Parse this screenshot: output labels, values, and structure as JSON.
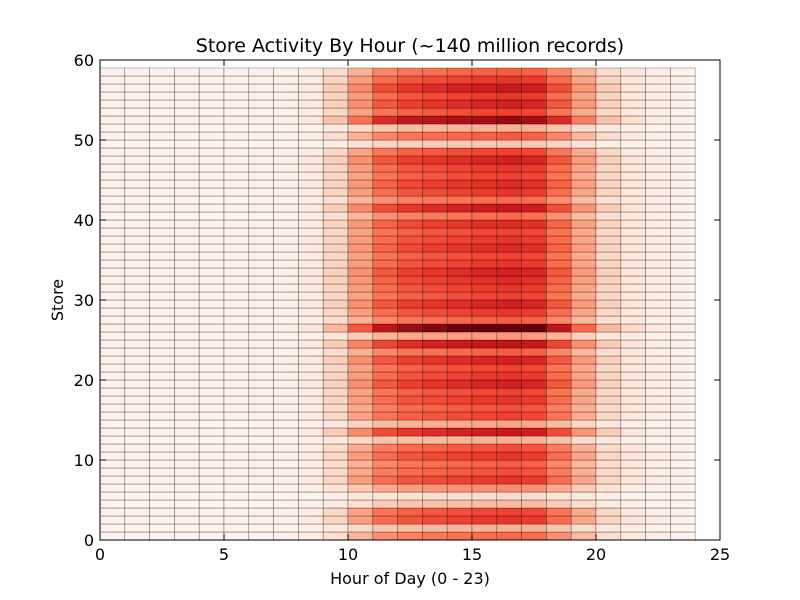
{
  "chart_data": {
    "type": "heatmap",
    "title": "Store Activity By Hour (~140 million records)",
    "xlabel": "Hour of Day (0 - 23)",
    "ylabel": "Store",
    "xlim": [
      0,
      25
    ],
    "ylim": [
      0,
      60
    ],
    "x_ticks": [
      0,
      5,
      10,
      15,
      20,
      25
    ],
    "y_ticks": [
      0,
      10,
      20,
      30,
      40,
      50,
      60
    ],
    "hours": [
      0,
      1,
      2,
      3,
      4,
      5,
      6,
      7,
      8,
      9,
      10,
      11,
      12,
      13,
      14,
      15,
      16,
      17,
      18,
      19,
      20,
      21,
      22,
      23
    ],
    "store_count": 59,
    "hour_profile": [
      0.02,
      0.02,
      0.02,
      0.02,
      0.02,
      0.02,
      0.02,
      0.03,
      0.07,
      0.18,
      0.38,
      0.55,
      0.62,
      0.65,
      0.68,
      0.7,
      0.72,
      0.7,
      0.55,
      0.35,
      0.18,
      0.1,
      0.05,
      0.03
    ],
    "store_scale": [
      0.7,
      0.4,
      0.9,
      0.85,
      0.35,
      0.2,
      0.55,
      0.9,
      0.8,
      0.75,
      0.9,
      0.8,
      0.4,
      1.05,
      0.45,
      0.85,
      0.8,
      0.9,
      0.85,
      1.0,
      0.9,
      0.85,
      1.0,
      0.75,
      1.1,
      0.5,
      1.45,
      0.75,
      0.9,
      1.0,
      0.85,
      0.9,
      0.95,
      1.0,
      0.9,
      0.85,
      0.95,
      0.9,
      0.85,
      0.95,
      0.7,
      1.05,
      0.7,
      0.9,
      0.95,
      0.85,
      0.9,
      1.0,
      0.85,
      0.3,
      0.75,
      0.4,
      1.25,
      0.85,
      1.0,
      0.9,
      1.05,
      0.9,
      0.75
    ],
    "colormap": "Reds",
    "grid": false,
    "colors": {
      "low": "#fff5f0",
      "high": "#67000d",
      "cell_edge": "#000000",
      "axis": "#000000"
    }
  }
}
